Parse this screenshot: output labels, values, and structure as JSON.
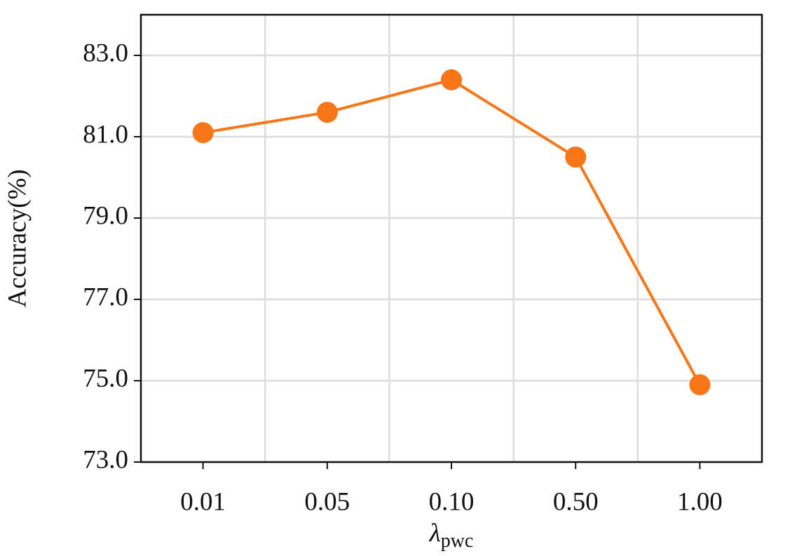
{
  "chart_data": {
    "type": "line",
    "categories": [
      "0.01",
      "0.05",
      "0.10",
      "0.50",
      "1.00"
    ],
    "values": [
      81.1,
      81.6,
      82.4,
      80.5,
      74.9
    ],
    "color": "#f97617",
    "y_label": "Accuracy(%)",
    "x_label": "λ",
    "x_label_subscript": "pwc",
    "ylim": [
      73,
      84
    ],
    "yticks": [
      {
        "value": 73,
        "label": "73.0"
      },
      {
        "value": 75,
        "label": "75.0"
      },
      {
        "value": 77,
        "label": "77.0"
      },
      {
        "value": 79,
        "label": "79.0"
      },
      {
        "value": 81,
        "label": "81.0"
      },
      {
        "value": 83,
        "label": "83.0"
      }
    ],
    "grid": true
  }
}
